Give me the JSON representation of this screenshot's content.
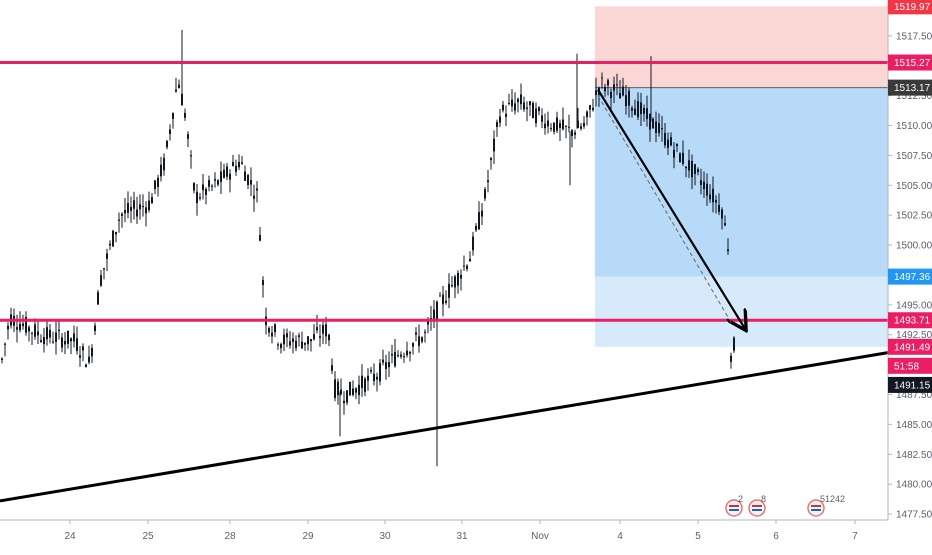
{
  "chart_data": {
    "type": "candlestick",
    "title": "",
    "ylim": [
      1477.0,
      1520.5
    ],
    "price_ticks": [
      "1477.50",
      "1480.00",
      "1482.50",
      "1485.00",
      "1487.50",
      "1490.00",
      "1492.50",
      "1495.00",
      "1497.50",
      "1500.00",
      "1502.50",
      "1505.00",
      "1507.50",
      "1510.00",
      "1512.50",
      "1515.00",
      "1517.50"
    ],
    "x_ticks": [
      "24",
      "25",
      "28",
      "29",
      "30",
      "31",
      "Nov",
      "4",
      "5",
      "6",
      "7"
    ],
    "horizontal_levels": [
      {
        "name": "resistance",
        "price": 1515.27,
        "label": "1515.27",
        "color": "#e91e63"
      },
      {
        "name": "support",
        "price": 1493.71,
        "label": "1493.71",
        "color": "#e91e63"
      }
    ],
    "price_tags": [
      {
        "name": "stop-level",
        "label": "1519.97",
        "color": "#f23645",
        "price": 1519.97
      },
      {
        "name": "resistance",
        "label": "1515.27",
        "color": "#e91e63",
        "price": 1515.27
      },
      {
        "name": "entry",
        "label": "1513.17",
        "color": "#3a3a3a",
        "price": 1513.17
      },
      {
        "name": "target-1",
        "label": "1497.36",
        "color": "#2196f3",
        "price": 1497.36
      },
      {
        "name": "support",
        "label": "1493.71",
        "color": "#e91e63",
        "price": 1493.71
      },
      {
        "name": "target-2",
        "label": "1491.49",
        "color": "#e91e63",
        "price": 1491.49
      },
      {
        "name": "countdown",
        "label": "51:58",
        "color": "#e91e63",
        "price": 1489.9
      },
      {
        "name": "last-price",
        "label": "1491.15",
        "color": "#131722",
        "price": 1488.3
      }
    ],
    "position_tool": {
      "entry": 1513.17,
      "stop": 1519.97,
      "target_1": 1497.36,
      "target_2": 1491.49
    },
    "trendline": {
      "from": {
        "x": "23",
        "price": 1478.6
      },
      "to": {
        "x": "7",
        "price": 1491.0
      }
    },
    "colors": {
      "stop_zone": "#f8c9c7",
      "target_zone": "#a9d3f7",
      "target_zone_light": "#d3e8fb",
      "level": "#e91e63",
      "candle": "#131722",
      "trendline": "#000000"
    },
    "event_flags": [
      {
        "name": "us-flag-event",
        "count": "2"
      },
      {
        "name": "us-flag-event",
        "count": "8"
      },
      {
        "name": "us-flag-event",
        "count": "5",
        "extra": "1242"
      }
    ]
  }
}
